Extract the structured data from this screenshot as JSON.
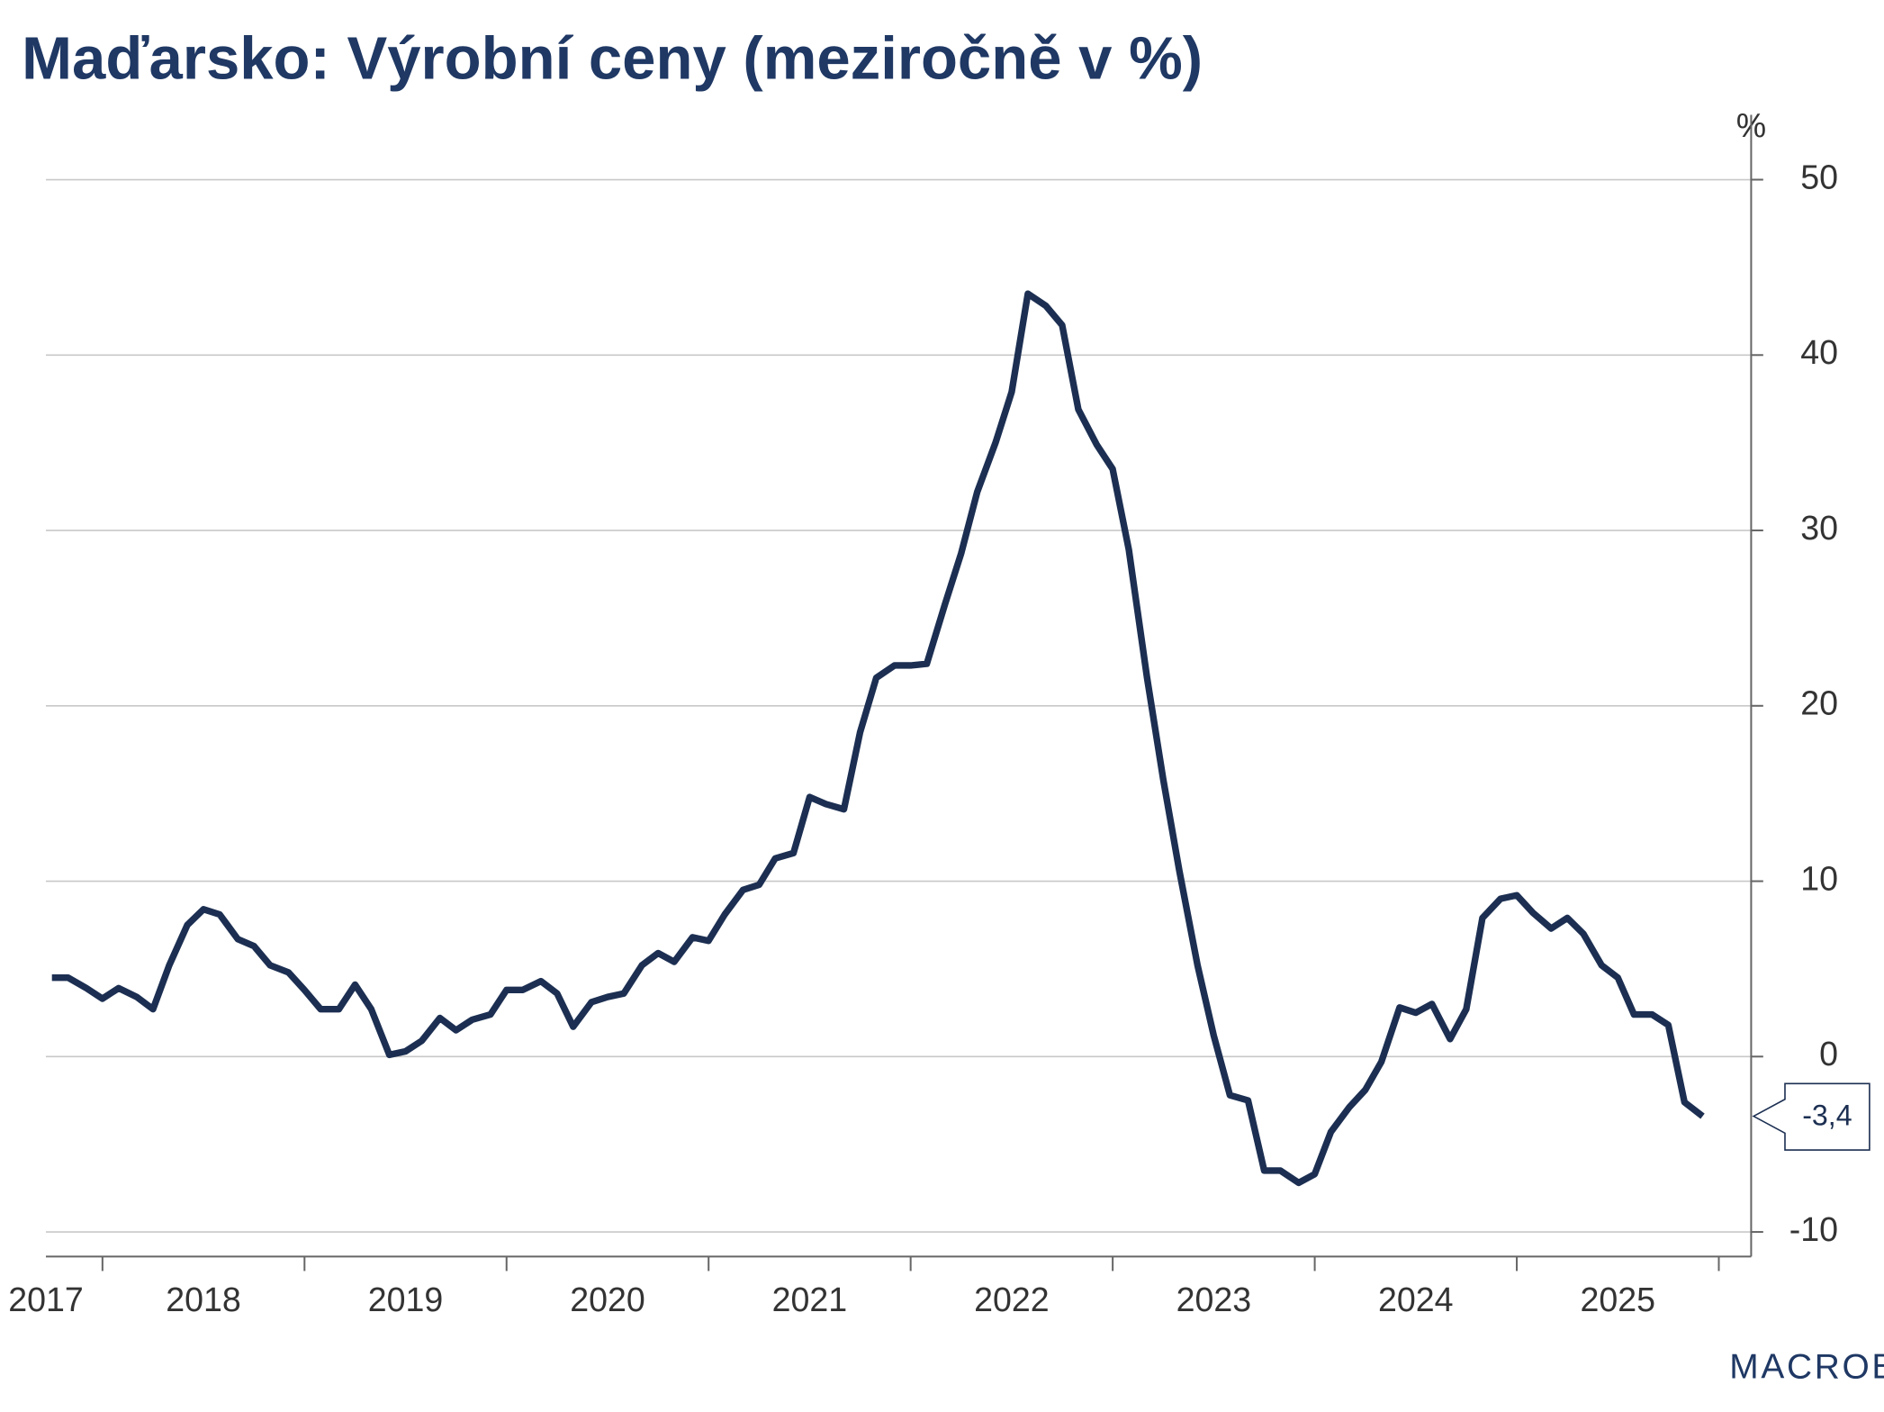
{
  "chart_data": {
    "type": "line",
    "title": "Maďarsko: Výrobní ceny (meziročně v %)",
    "y_unit": "%",
    "source": "MACROBOND",
    "last_label": "-3,4",
    "color": "#1c2f52",
    "x": [
      2017.75,
      2017.83,
      2017.92,
      2018,
      2018.08,
      2018.17,
      2018.25,
      2018.33,
      2018.42,
      2018.5,
      2018.58,
      2018.67,
      2018.75,
      2018.83,
      2018.92,
      2019,
      2019.08,
      2019.17,
      2019.25,
      2019.33,
      2019.42,
      2019.5,
      2019.58,
      2019.67,
      2019.75,
      2019.83,
      2019.92,
      2020,
      2020.08,
      2020.17,
      2020.25,
      2020.33,
      2020.42,
      2020.5,
      2020.58,
      2020.67,
      2020.75,
      2020.83,
      2020.92,
      2021,
      2021.08,
      2021.17,
      2021.25,
      2021.33,
      2021.42,
      2021.5,
      2021.58,
      2021.67,
      2021.75,
      2021.83,
      2021.92,
      2022,
      2022.08,
      2022.17,
      2022.25,
      2022.33,
      2022.42,
      2022.5,
      2022.58,
      2022.67,
      2022.75,
      2022.83,
      2022.92,
      2023,
      2023.08,
      2023.17,
      2023.25,
      2023.33,
      2023.42,
      2023.5,
      2023.58,
      2023.67,
      2023.75,
      2023.83,
      2023.92,
      2024,
      2024.08,
      2024.17,
      2024.25,
      2024.33,
      2024.42,
      2024.5,
      2024.58,
      2024.67,
      2024.75,
      2024.83,
      2024.92,
      2025,
      2025.08,
      2025.17,
      2025.25,
      2025.33,
      2025.42,
      2025.5,
      2025.58,
      2025.67,
      2025.75,
      2025.83,
      2025.92
    ],
    "values": [
      4.5,
      4.5,
      3.9,
      3.3,
      3.9,
      3.4,
      2.7,
      5.2,
      7.5,
      8.4,
      8.1,
      6.7,
      6.3,
      5.2,
      4.8,
      3.8,
      2.7,
      2.7,
      4.1,
      2.7,
      0.1,
      0.3,
      0.9,
      2.2,
      1.5,
      2.1,
      2.4,
      3.8,
      3.8,
      4.3,
      3.6,
      1.7,
      3.1,
      3.4,
      3.6,
      5.2,
      5.9,
      5.4,
      6.8,
      6.6,
      8.1,
      9.5,
      9.8,
      11.3,
      11.6,
      14.8,
      14.4,
      14.1,
      18.5,
      21.6,
      22.3,
      22.3,
      22.4,
      25.8,
      28.7,
      32.2,
      35.0,
      37.9,
      43.5,
      42.8,
      41.7,
      36.9,
      34.9,
      33.5,
      28.9,
      21.6,
      15.8,
      10.6,
      5.2,
      1.2,
      -2.2,
      -2.5,
      -6.5,
      -6.5,
      -7.2,
      -6.7,
      -4.3,
      -2.9,
      -1.9,
      -0.3,
      2.8,
      2.5,
      3.0,
      1.0,
      2.7,
      7.9,
      9.0,
      9.2,
      8.2,
      7.3,
      7.9,
      7.0,
      5.2,
      4.5,
      2.4,
      2.4,
      1.8,
      -2.6,
      -3.4
    ],
    "xlim": [
      2017.72,
      2026.16
    ],
    "xticks": [
      2018,
      2019,
      2020,
      2021,
      2022,
      2023,
      2024,
      2025,
      2026
    ],
    "year_labels": [
      {
        "value": 2017.5,
        "label": "2017"
      },
      {
        "value": 2018.5,
        "label": "2018"
      },
      {
        "value": 2019.5,
        "label": "2019"
      },
      {
        "value": 2020.5,
        "label": "2020"
      },
      {
        "value": 2021.5,
        "label": "2021"
      },
      {
        "value": 2022.5,
        "label": "2022"
      },
      {
        "value": 2023.5,
        "label": "2023"
      },
      {
        "value": 2024.5,
        "label": "2024"
      },
      {
        "value": 2025.5,
        "label": "2025"
      }
    ],
    "ylim": [
      -11.4,
      53.7
    ],
    "yticks": [
      -10,
      0,
      10,
      20,
      30,
      40,
      50
    ],
    "grid": true
  }
}
